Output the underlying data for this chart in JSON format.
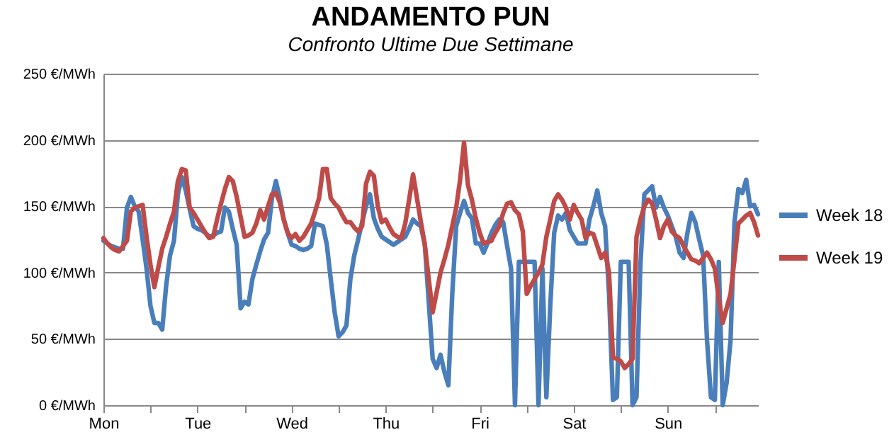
{
  "chart_data": {
    "type": "line",
    "title": "ANDAMENTO PUN",
    "subtitle": "Confronto Ultime Due Settimane",
    "categories": [
      "Mon",
      null,
      null,
      null,
      null,
      null,
      null,
      null,
      null,
      null,
      null,
      null,
      null,
      null,
      null,
      null,
      null,
      null,
      null,
      null,
      null,
      null,
      null,
      null,
      "Tue",
      null,
      null,
      null,
      null,
      null,
      null,
      null,
      null,
      null,
      null,
      null,
      null,
      null,
      null,
      null,
      null,
      null,
      null,
      null,
      null,
      null,
      null,
      null,
      "Wed",
      null,
      null,
      null,
      null,
      null,
      null,
      null,
      null,
      null,
      null,
      null,
      null,
      null,
      null,
      null,
      null,
      null,
      null,
      null,
      null,
      null,
      null,
      null,
      "Thu",
      null,
      null,
      null,
      null,
      null,
      null,
      null,
      null,
      null,
      null,
      null,
      null,
      null,
      null,
      null,
      null,
      null,
      null,
      null,
      null,
      null,
      null,
      null,
      "Fri",
      null,
      null,
      null,
      null,
      null,
      null,
      null,
      null,
      null,
      null,
      null,
      null,
      null,
      null,
      null,
      null,
      null,
      null,
      null,
      null,
      null,
      null,
      null,
      "Sat",
      null,
      null,
      null,
      null,
      null,
      null,
      null,
      null,
      null,
      null,
      null,
      null,
      null,
      null,
      null,
      null,
      null,
      null,
      null,
      null,
      null,
      null,
      null,
      "Sun",
      null,
      null,
      null,
      null,
      null,
      null,
      null,
      null,
      null,
      null,
      null,
      null,
      null,
      null,
      null,
      null,
      null,
      null,
      null,
      null,
      null,
      null,
      null
    ],
    "ylim": [
      0,
      250
    ],
    "yticks": [
      {
        "value": 0,
        "label": "0 €/MWh"
      },
      {
        "value": 50,
        "label": "50 €/MWh"
      },
      {
        "value": 100,
        "label": "100 €/MWh"
      },
      {
        "value": 150,
        "label": "150 €/MWh"
      },
      {
        "value": 200,
        "label": "200 €/MWh"
      },
      {
        "value": 250,
        "label": "250 €/MWh"
      }
    ],
    "grid": "y",
    "legend": "right",
    "line_style": "solid",
    "series": [
      {
        "name": "Week 18",
        "color": "#4a7ebb",
        "values": [
          124,
          122,
          120,
          119,
          118,
          118,
          149,
          157,
          150,
          146,
          125,
          103,
          75,
          62,
          62,
          57,
          90,
          113,
          124,
          159,
          172,
          162,
          148,
          135,
          133,
          132,
          130,
          127,
          128,
          130,
          131,
          149,
          146,
          133,
          121,
          73,
          78,
          76,
          95,
          106,
          116,
          125,
          130,
          156,
          169,
          156,
          140,
          130,
          121,
          120,
          118,
          117,
          118,
          120,
          137,
          136,
          135,
          121,
          95,
          70,
          52,
          55,
          60,
          95,
          113,
          125,
          138,
          150,
          159,
          141,
          133,
          127,
          125,
          123,
          121,
          123,
          125,
          127,
          133,
          140,
          137,
          135,
          121,
          78,
          35,
          28,
          38,
          25,
          15,
          84,
          135,
          145,
          154,
          145,
          141,
          122,
          122,
          115,
          122,
          130,
          136,
          140,
          138,
          120,
          103,
          0,
          108,
          108,
          108,
          108,
          108,
          0,
          103,
          6,
          75,
          130,
          143,
          140,
          145,
          132,
          127,
          122,
          122,
          122,
          140,
          150,
          162,
          145,
          135,
          84,
          4,
          6,
          108,
          108,
          108,
          0,
          6,
          106,
          159,
          162,
          165,
          149,
          157,
          149,
          143,
          135,
          127,
          115,
          111,
          130,
          145,
          138,
          125,
          113,
          49,
          6,
          4,
          108,
          0,
          17,
          49,
          138,
          163,
          160,
          170,
          150,
          151,
          144
        ]
      },
      {
        "name": "Week 19",
        "color": "#be4b48",
        "values": [
          126,
          122,
          119,
          117,
          116,
          120,
          124,
          146,
          149,
          150,
          151,
          127,
          106,
          89,
          104,
          118,
          127,
          137,
          146,
          169,
          178,
          177,
          149,
          145,
          140,
          135,
          130,
          126,
          127,
          140,
          152,
          163,
          172,
          169,
          157,
          142,
          127,
          128,
          130,
          137,
          147,
          140,
          150,
          159,
          160,
          153,
          140,
          130,
          126,
          129,
          124,
          127,
          132,
          137,
          146,
          156,
          178,
          178,
          156,
          152,
          149,
          143,
          138,
          138,
          134,
          131,
          135,
          167,
          176,
          173,
          150,
          138,
          140,
          134,
          129,
          127,
          126,
          137,
          155,
          174,
          156,
          138,
          121,
          95,
          70,
          85,
          100,
          110,
          121,
          135,
          149,
          170,
          198,
          166,
          155,
          141,
          130,
          122,
          123,
          124,
          130,
          135,
          145,
          152,
          153,
          147,
          144,
          131,
          84,
          90,
          95,
          100,
          106,
          127,
          140,
          154,
          159,
          155,
          149,
          140,
          151,
          145,
          140,
          126,
          130,
          129,
          120,
          111,
          115,
          100,
          36,
          35,
          33,
          28,
          31,
          35,
          127,
          140,
          150,
          155,
          152,
          140,
          126,
          135,
          140,
          131,
          128,
          126,
          120,
          115,
          110,
          109,
          107,
          111,
          115,
          110,
          103,
          80,
          62,
          73,
          84,
          110,
          137,
          140,
          143,
          145,
          138,
          128
        ]
      }
    ]
  }
}
